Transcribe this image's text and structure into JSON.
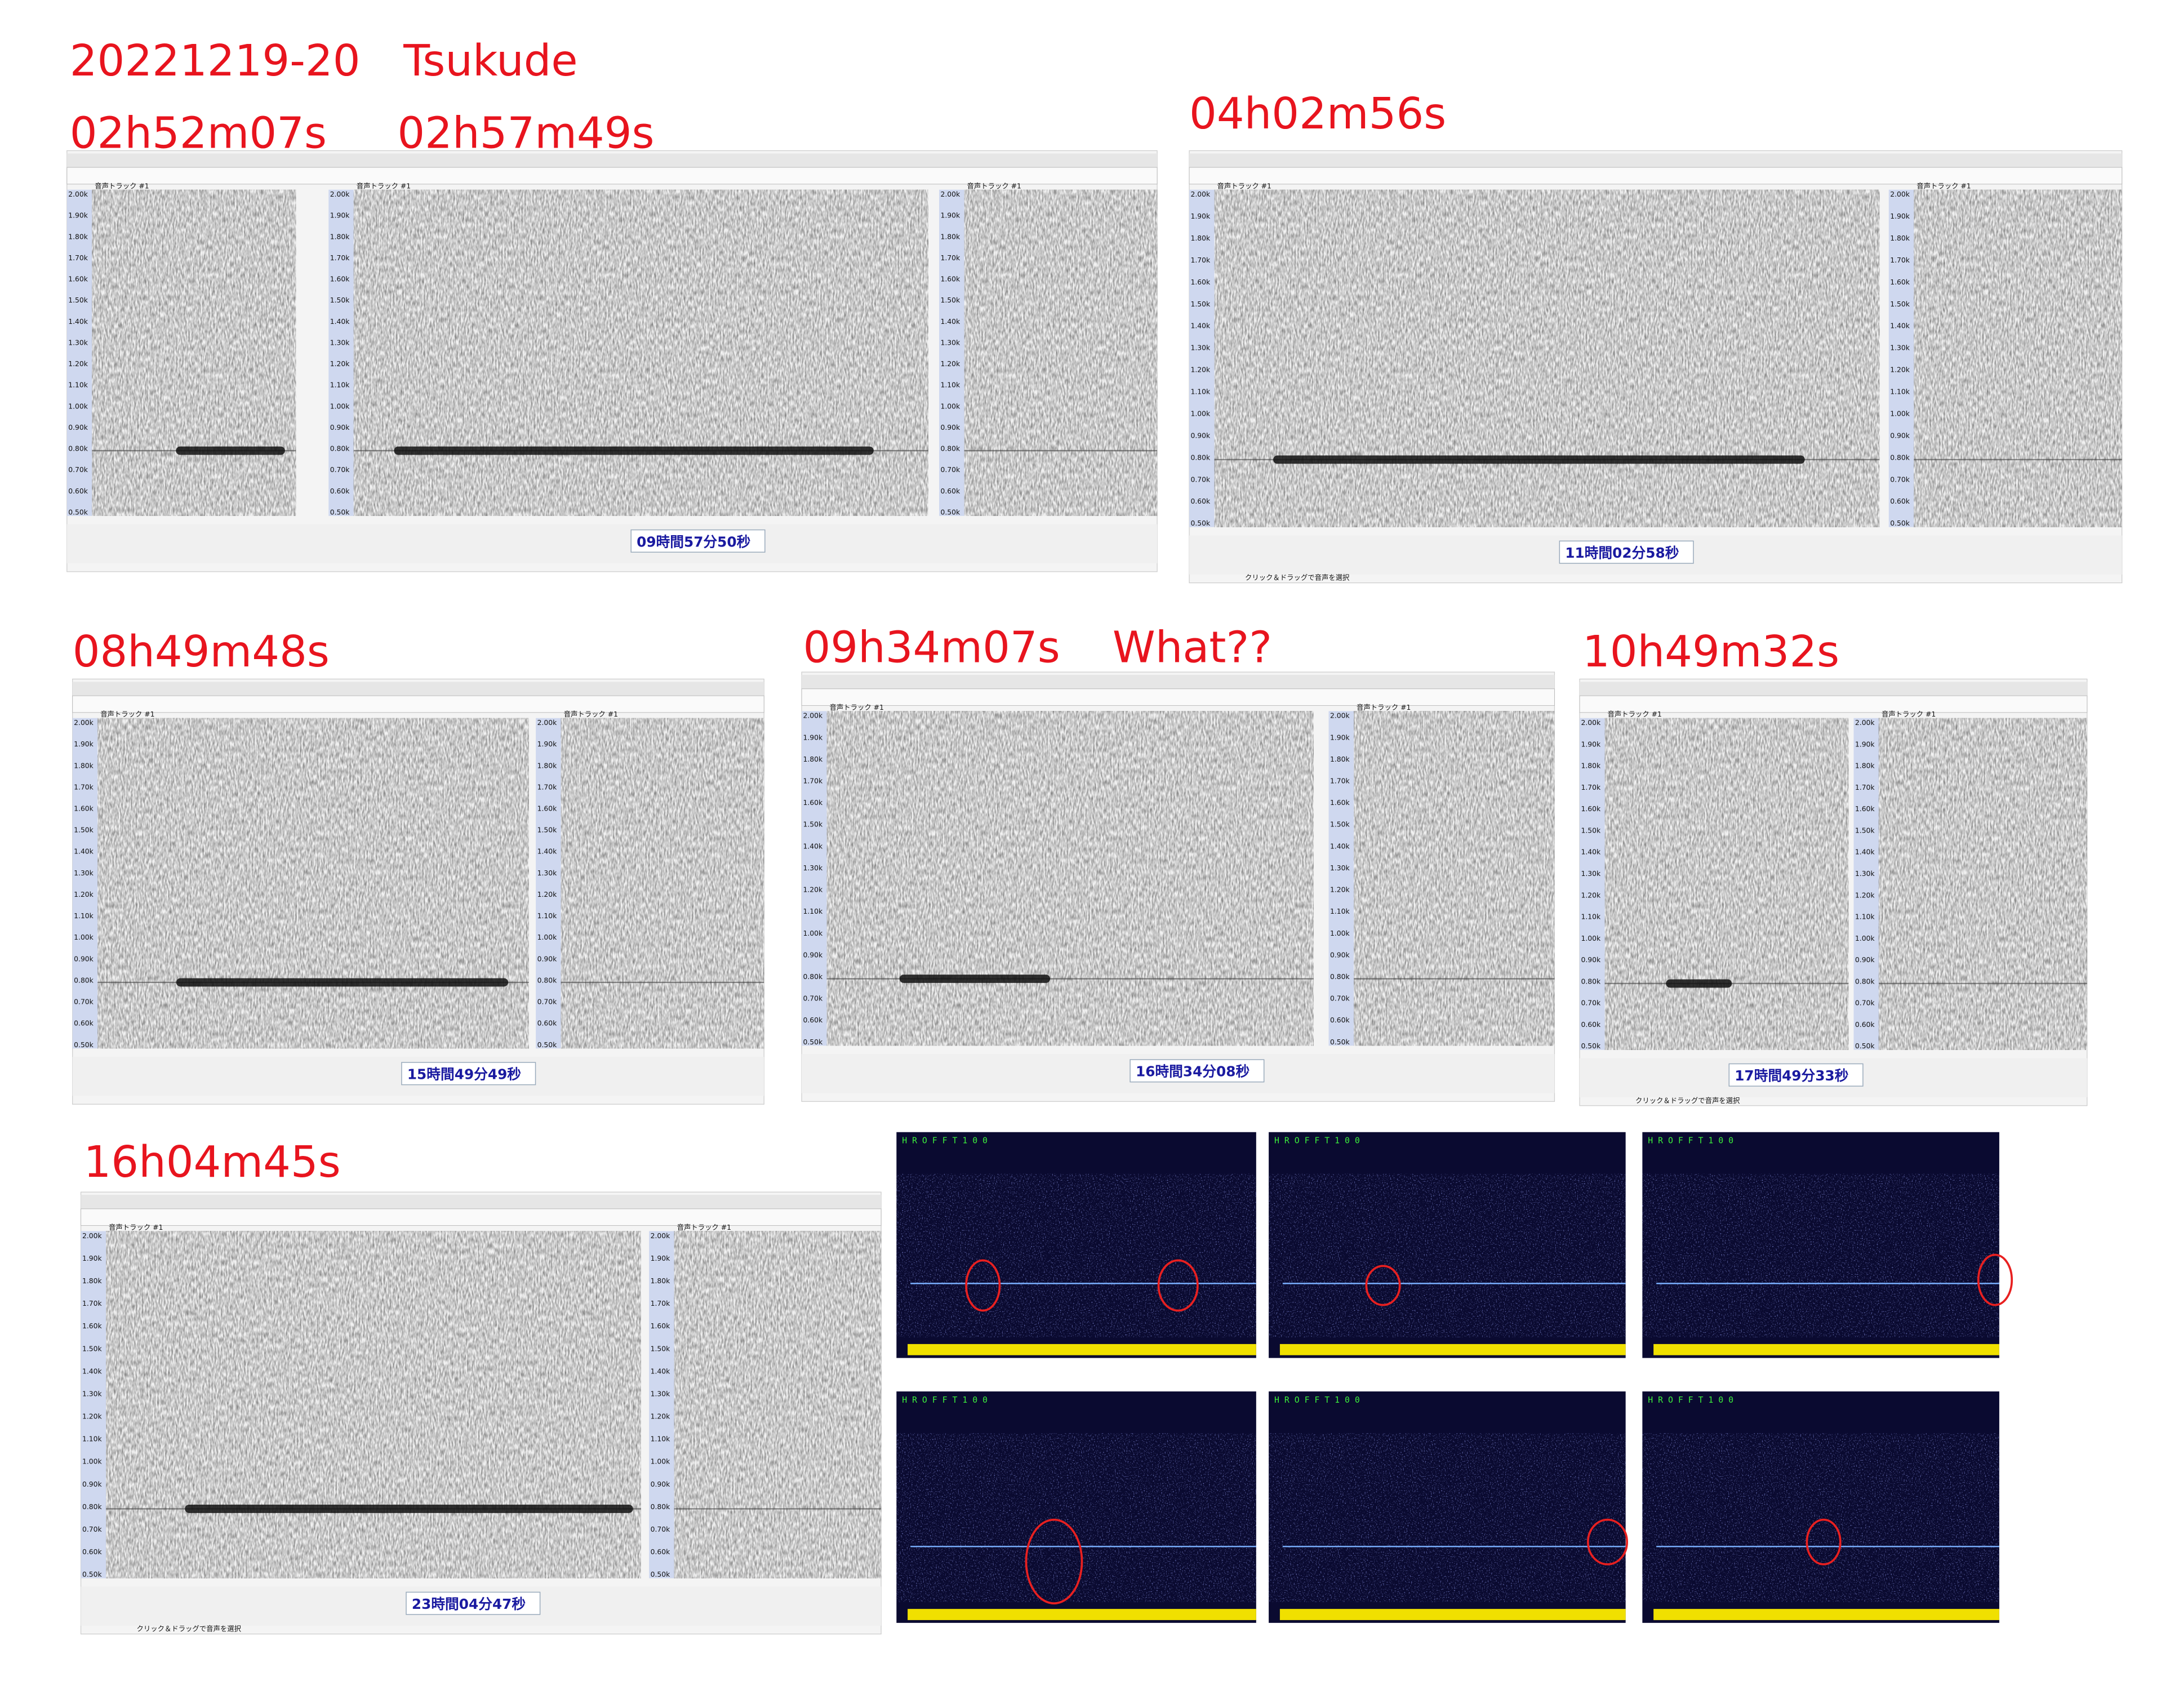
{
  "header": {
    "title": "20221219-20　Tsukude"
  },
  "labels": [
    "02h52m07s",
    "02h57m49s",
    "04h02m56s",
    "08h49m48s",
    "09h34m07s",
    "What??",
    "10h49m32s",
    "16h04m45s"
  ],
  "freq_labels": [
    "2.00k",
    "1.90k",
    "1.80k",
    "1.70k",
    "1.60k",
    "1.50k",
    "1.40k",
    "1.30k",
    "1.20k",
    "1.10k",
    "1.00k",
    "0.90k",
    "0.80k",
    "0.70k",
    "0.60k",
    "0.50k"
  ],
  "track_name": "音声トラック #1",
  "status_hint": "クリック＆ドラッグで音声を選択",
  "screenshots": [
    {
      "readout": "09時間57分50秒"
    },
    {
      "readout": "11時間02分58秒"
    },
    {
      "readout": "15時間49分49秒"
    },
    {
      "readout": "16時間34分08秒"
    },
    {
      "readout": "17時間49分33秒"
    },
    {
      "readout": "23時間04分47秒"
    }
  ],
  "hrofft": {
    "header": "H R O F F T  1 0 0"
  }
}
